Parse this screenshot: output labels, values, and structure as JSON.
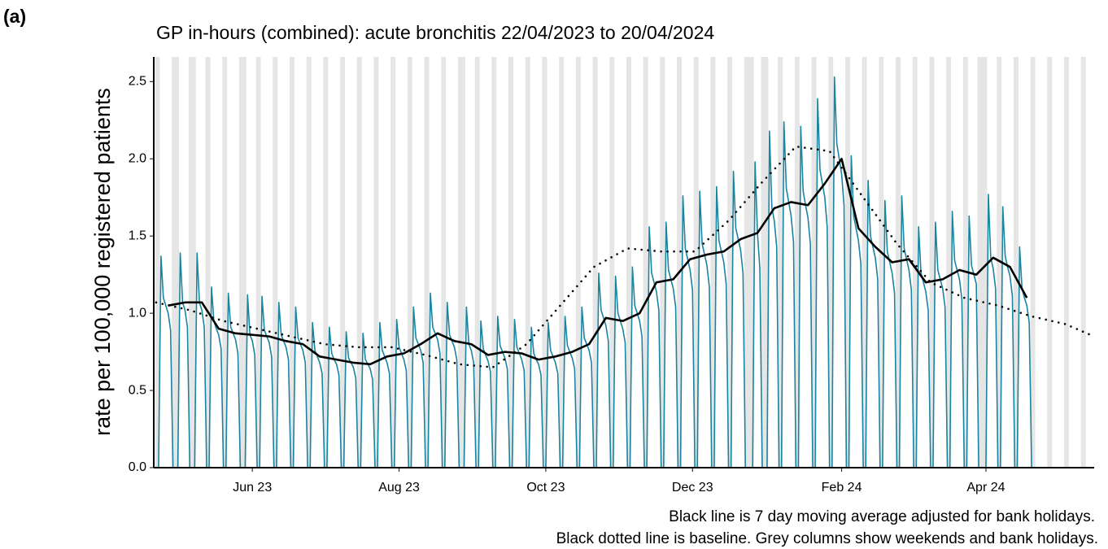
{
  "chart_data": {
    "type": "line",
    "panel_label": "(a)",
    "title": "GP in-hours (combined): acute bronchitis 22/04/2023 to 20/04/2024",
    "y_label": "rate per 100,000 registered patients",
    "caption": [
      "Black line is 7 day moving average adjusted for bank holidays.",
      "Black dotted line is baseline. Grey columns show weekends and bank holidays."
    ],
    "xlim": [
      "2023-04-21",
      "2024-05-16"
    ],
    "xticks": [
      {
        "value": "2023-06-01",
        "label": "Jun 23"
      },
      {
        "value": "2023-08-01",
        "label": "Aug 23"
      },
      {
        "value": "2023-10-01",
        "label": "Oct 23"
      },
      {
        "value": "2023-12-01",
        "label": "Dec 23"
      },
      {
        "value": "2024-02-01",
        "label": "Feb 24"
      },
      {
        "value": "2024-04-01",
        "label": "Apr 24"
      }
    ],
    "ylim": [
      0,
      2.66
    ],
    "yticks": [
      {
        "value": 0,
        "label": "0.0"
      },
      0.5,
      {
        "value": 1,
        "label": "1.0"
      },
      1.5,
      {
        "value": 2,
        "label": "2.0"
      },
      2.5
    ],
    "shade_weekends": true,
    "shade_color": "#e5e5e5",
    "bank_holidays": [
      "2023-05-01",
      "2023-05-08",
      "2023-05-29",
      "2023-08-28",
      "2023-12-25",
      "2023-12-26",
      "2024-01-01",
      "2024-03-29",
      "2024-04-01"
    ],
    "series": [
      {
        "color": "#1a85a0",
        "style": "solid",
        "width": 1.6,
        "x": [
          "2023-04-22",
          "2023-04-23",
          "2023-04-24",
          "2023-04-25",
          "2023-04-26",
          "2023-04-27",
          "2023-04-28",
          "2023-04-29",
          "2023-04-30",
          "2023-05-01",
          "2023-05-02",
          "2023-05-03",
          "2023-05-04",
          "2023-05-05",
          "2023-05-06",
          "2023-05-07",
          "2023-05-08",
          "2023-05-09",
          "2023-05-10",
          "2023-05-11",
          "2023-05-12",
          "2023-05-13",
          "2023-05-14",
          "2023-05-15",
          "2023-05-16",
          "2023-05-17",
          "2023-05-18",
          "2023-05-19",
          "2023-05-20",
          "2023-05-21",
          "2023-05-22",
          "2023-05-23",
          "2023-05-24",
          "2023-05-25",
          "2023-05-26",
          "2023-05-27",
          "2023-05-28",
          "2023-05-29",
          "2023-05-30",
          "2023-05-31",
          "2023-06-01",
          "2023-06-02",
          "2023-06-03",
          "2023-06-04",
          "2023-06-05",
          "2023-06-06",
          "2023-06-07",
          "2023-06-08",
          "2023-06-09",
          "2023-06-10",
          "2023-06-11",
          "2023-06-12",
          "2023-06-13",
          "2023-06-14",
          "2023-06-15",
          "2023-06-16",
          "2023-06-17",
          "2023-06-18",
          "2023-06-19",
          "2023-06-20",
          "2023-06-21",
          "2023-06-22",
          "2023-06-23",
          "2023-06-24",
          "2023-06-25",
          "2023-06-26",
          "2023-06-27",
          "2023-06-28",
          "2023-06-29",
          "2023-06-30",
          "2023-07-01",
          "2023-07-02",
          "2023-07-03",
          "2023-07-04",
          "2023-07-05",
          "2023-07-06",
          "2023-07-07",
          "2023-07-08",
          "2023-07-09",
          "2023-07-10",
          "2023-07-11",
          "2023-07-12",
          "2023-07-13",
          "2023-07-14",
          "2023-07-15",
          "2023-07-16",
          "2023-07-17",
          "2023-07-18",
          "2023-07-19",
          "2023-07-20",
          "2023-07-21",
          "2023-07-22",
          "2023-07-23",
          "2023-07-24",
          "2023-07-25",
          "2023-07-26",
          "2023-07-27",
          "2023-07-28",
          "2023-07-29",
          "2023-07-30",
          "2023-07-31",
          "2023-08-01",
          "2023-08-02",
          "2023-08-03",
          "2023-08-04",
          "2023-08-05",
          "2023-08-06",
          "2023-08-07",
          "2023-08-08",
          "2023-08-09",
          "2023-08-10",
          "2023-08-11",
          "2023-08-12",
          "2023-08-13",
          "2023-08-14",
          "2023-08-15",
          "2023-08-16",
          "2023-08-17",
          "2023-08-18",
          "2023-08-19",
          "2023-08-20",
          "2023-08-21",
          "2023-08-22",
          "2023-08-23",
          "2023-08-24",
          "2023-08-25",
          "2023-08-26",
          "2023-08-27",
          "2023-08-28",
          "2023-08-29",
          "2023-08-30",
          "2023-08-31",
          "2023-09-01",
          "2023-09-02",
          "2023-09-03",
          "2023-09-04",
          "2023-09-05",
          "2023-09-06",
          "2023-09-07",
          "2023-09-08",
          "2023-09-09",
          "2023-09-10",
          "2023-09-11",
          "2023-09-12",
          "2023-09-13",
          "2023-09-14",
          "2023-09-15",
          "2023-09-16",
          "2023-09-17",
          "2023-09-18",
          "2023-09-19",
          "2023-09-20",
          "2023-09-21",
          "2023-09-22",
          "2023-09-23",
          "2023-09-24",
          "2023-09-25",
          "2023-09-26",
          "2023-09-27",
          "2023-09-28",
          "2023-09-29",
          "2023-09-30",
          "2023-10-01",
          "2023-10-02",
          "2023-10-03",
          "2023-10-04",
          "2023-10-05",
          "2023-10-06",
          "2023-10-07",
          "2023-10-08",
          "2023-10-09",
          "2023-10-10",
          "2023-10-11",
          "2023-10-12",
          "2023-10-13",
          "2023-10-14",
          "2023-10-15",
          "2023-10-16",
          "2023-10-17",
          "2023-10-18",
          "2023-10-19",
          "2023-10-20",
          "2023-10-21",
          "2023-10-22",
          "2023-10-23",
          "2023-10-24",
          "2023-10-25",
          "2023-10-26",
          "2023-10-27",
          "2023-10-28",
          "2023-10-29",
          "2023-10-30",
          "2023-10-31",
          "2023-11-01",
          "2023-11-02",
          "2023-11-03",
          "2023-11-04",
          "2023-11-05",
          "2023-11-06",
          "2023-11-07",
          "2023-11-08",
          "2023-11-09",
          "2023-11-10",
          "2023-11-11",
          "2023-11-12",
          "2023-11-13",
          "2023-11-14",
          "2023-11-15",
          "2023-11-16",
          "2023-11-17",
          "2023-11-18",
          "2023-11-19",
          "2023-11-20",
          "2023-11-21",
          "2023-11-22",
          "2023-11-23",
          "2023-11-24",
          "2023-11-25",
          "2023-11-26",
          "2023-11-27",
          "2023-11-28",
          "2023-11-29",
          "2023-11-30",
          "2023-12-01",
          "2023-12-02",
          "2023-12-03",
          "2023-12-04",
          "2023-12-05",
          "2023-12-06",
          "2023-12-07",
          "2023-12-08",
          "2023-12-09",
          "2023-12-10",
          "2023-12-11",
          "2023-12-12",
          "2023-12-13",
          "2023-12-14",
          "2023-12-15",
          "2023-12-16",
          "2023-12-17",
          "2023-12-18",
          "2023-12-19",
          "2023-12-20",
          "2023-12-21",
          "2023-12-22",
          "2023-12-23",
          "2023-12-24",
          "2023-12-25",
          "2023-12-26",
          "2023-12-27",
          "2023-12-28",
          "2023-12-29",
          "2023-12-30",
          "2023-12-31",
          "2024-01-01",
          "2024-01-02",
          "2024-01-03",
          "2024-01-04",
          "2024-01-05",
          "2024-01-06",
          "2024-01-07",
          "2024-01-08",
          "2024-01-09",
          "2024-01-10",
          "2024-01-11",
          "2024-01-12",
          "2024-01-13",
          "2024-01-14",
          "2024-01-15",
          "2024-01-16",
          "2024-01-17",
          "2024-01-18",
          "2024-01-19",
          "2024-01-20",
          "2024-01-21",
          "2024-01-22",
          "2024-01-23",
          "2024-01-24",
          "2024-01-25",
          "2024-01-26",
          "2024-01-27",
          "2024-01-28",
          "2024-01-29",
          "2024-01-30",
          "2024-01-31",
          "2024-02-01",
          "2024-02-02",
          "2024-02-03",
          "2024-02-04",
          "2024-02-05",
          "2024-02-06",
          "2024-02-07",
          "2024-02-08",
          "2024-02-09",
          "2024-02-10",
          "2024-02-11",
          "2024-02-12",
          "2024-02-13",
          "2024-02-14",
          "2024-02-15",
          "2024-02-16",
          "2024-02-17",
          "2024-02-18",
          "2024-02-19",
          "2024-02-20",
          "2024-02-21",
          "2024-02-22",
          "2024-02-23",
          "2024-02-24",
          "2024-02-25",
          "2024-02-26",
          "2024-02-27",
          "2024-02-28",
          "2024-02-29",
          "2024-03-01",
          "2024-03-02",
          "2024-03-03",
          "2024-03-04",
          "2024-03-05",
          "2024-03-06",
          "2024-03-07",
          "2024-03-08",
          "2024-03-09",
          "2024-03-10",
          "2024-03-11",
          "2024-03-12",
          "2024-03-13",
          "2024-03-14",
          "2024-03-15",
          "2024-03-16",
          "2024-03-17",
          "2024-03-18",
          "2024-03-19",
          "2024-03-20",
          "2024-03-21",
          "2024-03-22",
          "2024-03-23",
          "2024-03-24",
          "2024-03-25",
          "2024-03-26",
          "2024-03-27",
          "2024-03-28",
          "2024-03-29",
          "2024-03-30",
          "2024-03-31",
          "2024-04-01",
          "2024-04-02",
          "2024-04-03",
          "2024-04-04",
          "2024-04-05",
          "2024-04-06",
          "2024-04-07",
          "2024-04-08",
          "2024-04-09",
          "2024-04-10",
          "2024-04-11",
          "2024-04-12",
          "2024-04-13",
          "2024-04-14",
          "2024-04-15",
          "2024-04-16",
          "2024-04-17",
          "2024-04-18",
          "2024-04-19",
          "2024-04-20"
        ],
        "values": [
          0,
          0,
          1.37,
          1.1,
          1.05,
          1.0,
          0.89,
          0,
          0,
          0,
          1.39,
          1.07,
          1.02,
          0.91,
          0,
          0,
          0,
          1.39,
          1.07,
          1.02,
          0.91,
          0,
          0,
          1.17,
          0.95,
          0.9,
          0.86,
          0.77,
          0,
          0,
          1.13,
          0.91,
          0.87,
          0.83,
          0.74,
          0,
          0,
          0,
          1.12,
          0.86,
          0.82,
          0.73,
          0,
          0,
          1.11,
          0.89,
          0.85,
          0.81,
          0.72,
          0,
          0,
          1.07,
          0.86,
          0.82,
          0.78,
          0.7,
          0,
          0,
          1.04,
          0.84,
          0.8,
          0.76,
          0.68,
          0,
          0,
          0.94,
          0.76,
          0.72,
          0.68,
          0.61,
          0,
          0,
          0.91,
          0.74,
          0.7,
          0.67,
          0.6,
          0,
          0,
          0.88,
          0.71,
          0.68,
          0.65,
          0.58,
          0,
          0,
          0.87,
          0.7,
          0.67,
          0.64,
          0.57,
          0,
          0,
          0.94,
          0.76,
          0.72,
          0.68,
          0.61,
          0,
          0,
          0.96,
          0.78,
          0.74,
          0.7,
          0.63,
          0,
          0,
          1.04,
          0.84,
          0.8,
          0.76,
          0.68,
          0,
          0,
          1.13,
          0.91,
          0.87,
          0.83,
          0.74,
          0,
          0,
          1.07,
          0.86,
          0.82,
          0.78,
          0.7,
          0,
          0,
          0,
          1.04,
          0.8,
          0.76,
          0.68,
          0,
          0,
          0.95,
          0.77,
          0.73,
          0.69,
          0.62,
          0,
          0,
          0.98,
          0.79,
          0.75,
          0.71,
          0.64,
          0,
          0,
          0.96,
          0.78,
          0.74,
          0.7,
          0.63,
          0,
          0,
          0.91,
          0.74,
          0.7,
          0.67,
          0.6,
          0,
          0,
          0.94,
          0.76,
          0.72,
          0.68,
          0.61,
          0,
          0,
          0.98,
          0.79,
          0.75,
          0.71,
          0.64,
          0,
          0,
          1.04,
          0.84,
          0.8,
          0.76,
          0.68,
          0,
          0,
          1.26,
          1.02,
          0.97,
          0.92,
          0.82,
          0,
          0,
          1.24,
          1.0,
          0.95,
          0.9,
          0.81,
          0,
          0,
          1.3,
          1.05,
          1.0,
          0.95,
          0.85,
          0,
          0,
          1.56,
          1.26,
          1.2,
          1.14,
          1.02,
          0,
          0,
          1.59,
          1.28,
          1.22,
          1.16,
          1.04,
          0,
          0,
          1.76,
          1.42,
          1.35,
          1.28,
          1.15,
          0,
          0,
          1.79,
          1.45,
          1.38,
          1.31,
          1.17,
          0,
          0,
          1.82,
          1.47,
          1.4,
          1.33,
          1.19,
          0,
          0,
          1.92,
          1.55,
          1.48,
          1.41,
          1.26,
          0,
          0,
          0,
          0,
          1.98,
          1.52,
          1.29,
          0,
          0,
          0,
          2.18,
          1.68,
          1.6,
          1.43,
          0,
          0,
          2.24,
          1.81,
          1.72,
          1.63,
          1.46,
          0,
          0,
          2.21,
          1.79,
          1.7,
          1.62,
          1.45,
          0,
          0,
          2.39,
          1.93,
          1.84,
          1.75,
          1.56,
          0,
          0,
          2.53,
          2.1,
          2.0,
          1.9,
          1.7,
          0,
          0,
          2.02,
          1.63,
          1.55,
          1.47,
          1.32,
          0,
          0,
          1.86,
          1.5,
          1.43,
          1.36,
          1.22,
          0,
          0,
          1.73,
          1.4,
          1.33,
          1.26,
          1.13,
          0,
          0,
          1.76,
          1.42,
          1.35,
          1.28,
          1.15,
          0,
          0,
          1.56,
          1.26,
          1.2,
          1.14,
          1.02,
          0,
          0,
          1.59,
          1.28,
          1.22,
          1.16,
          1.04,
          0,
          0,
          1.66,
          1.34,
          1.28,
          1.22,
          1.09,
          0,
          0,
          1.63,
          1.31,
          1.25,
          1.19,
          0,
          0,
          0,
          0,
          1.77,
          1.36,
          1.29,
          1.16,
          0,
          0,
          1.69,
          1.37,
          1.3,
          1.24,
          1.11,
          0,
          0,
          1.43,
          1.16,
          1.1,
          1.05,
          0.94,
          0
        ]
      },
      {
        "color": "#000000",
        "style": "solid",
        "width": 2.6,
        "x": [
          "2023-04-27",
          "2023-05-04",
          "2023-05-11",
          "2023-05-18",
          "2023-05-25",
          "2023-06-01",
          "2023-06-08",
          "2023-06-15",
          "2023-06-22",
          "2023-06-29",
          "2023-07-06",
          "2023-07-13",
          "2023-07-20",
          "2023-07-27",
          "2023-08-03",
          "2023-08-10",
          "2023-08-17",
          "2023-08-24",
          "2023-08-31",
          "2023-09-07",
          "2023-09-14",
          "2023-09-21",
          "2023-09-28",
          "2023-10-05",
          "2023-10-12",
          "2023-10-19",
          "2023-10-26",
          "2023-11-02",
          "2023-11-09",
          "2023-11-16",
          "2023-11-23",
          "2023-11-30",
          "2023-12-07",
          "2023-12-14",
          "2023-12-21",
          "2023-12-28",
          "2024-01-04",
          "2024-01-11",
          "2024-01-18",
          "2024-01-25",
          "2024-02-01",
          "2024-02-08",
          "2024-02-15",
          "2024-02-22",
          "2024-02-29",
          "2024-03-07",
          "2024-03-14",
          "2024-03-21",
          "2024-03-28",
          "2024-04-04",
          "2024-04-11",
          "2024-04-18"
        ],
        "values": [
          1.05,
          1.07,
          1.07,
          0.9,
          0.87,
          0.86,
          0.85,
          0.82,
          0.8,
          0.72,
          0.7,
          0.68,
          0.67,
          0.72,
          0.74,
          0.8,
          0.87,
          0.82,
          0.8,
          0.73,
          0.75,
          0.74,
          0.7,
          0.72,
          0.75,
          0.8,
          0.97,
          0.95,
          1.0,
          1.2,
          1.22,
          1.35,
          1.38,
          1.4,
          1.48,
          1.52,
          1.68,
          1.72,
          1.7,
          1.84,
          2.0,
          1.55,
          1.43,
          1.33,
          1.35,
          1.2,
          1.22,
          1.28,
          1.25,
          1.36,
          1.3,
          1.1
        ]
      },
      {
        "color": "#000000",
        "style": "dotted",
        "width": 2.6,
        "x": [
          "2023-04-22",
          "2023-05-06",
          "2023-05-20",
          "2023-06-03",
          "2023-06-17",
          "2023-07-01",
          "2023-07-15",
          "2023-07-29",
          "2023-08-12",
          "2023-08-26",
          "2023-09-09",
          "2023-09-23",
          "2023-10-07",
          "2023-10-21",
          "2023-11-04",
          "2023-11-18",
          "2023-12-02",
          "2023-12-16",
          "2023-12-30",
          "2024-01-13",
          "2024-01-27",
          "2024-02-10",
          "2024-02-24",
          "2024-03-09",
          "2024-03-23",
          "2024-04-06",
          "2024-04-20",
          "2024-05-04",
          "2024-05-16"
        ],
        "values": [
          1.07,
          1.02,
          0.95,
          0.9,
          0.85,
          0.8,
          0.78,
          0.78,
          0.73,
          0.67,
          0.65,
          0.8,
          1.05,
          1.3,
          1.42,
          1.4,
          1.4,
          1.6,
          1.85,
          2.08,
          2.05,
          1.75,
          1.45,
          1.2,
          1.1,
          1.05,
          0.98,
          0.93,
          0.85
        ]
      }
    ]
  }
}
